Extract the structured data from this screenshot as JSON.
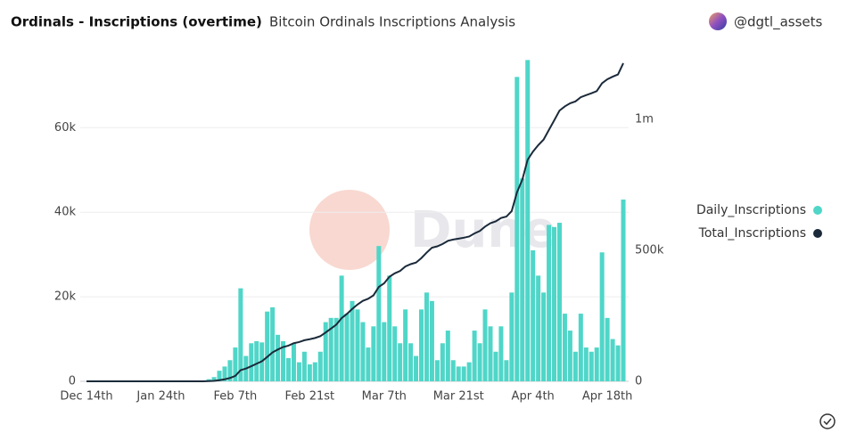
{
  "chart_data": {
    "type": "bar_line",
    "title": "Ordinals - Inscriptions (overtime)",
    "subtitle": "Bitcoin Ordinals Inscriptions Analysis",
    "author": "@dgtl_assets",
    "watermark": "Dune",
    "categories": [
      "Dec 14th",
      null,
      null,
      null,
      null,
      null,
      null,
      null,
      null,
      null,
      null,
      null,
      null,
      null,
      "Jan 24th",
      null,
      null,
      null,
      null,
      null,
      null,
      null,
      null,
      null,
      null,
      null,
      null,
      null,
      "Feb 7th",
      null,
      null,
      null,
      null,
      null,
      null,
      null,
      null,
      null,
      null,
      null,
      null,
      null,
      "Feb 21st",
      null,
      null,
      null,
      null,
      null,
      null,
      null,
      null,
      null,
      null,
      null,
      null,
      null,
      "Mar 7th",
      null,
      null,
      null,
      null,
      null,
      null,
      null,
      null,
      null,
      null,
      null,
      null,
      null,
      "Mar 21st",
      null,
      null,
      null,
      null,
      null,
      null,
      null,
      null,
      null,
      null,
      null,
      null,
      null,
      "Apr 4th",
      null,
      null,
      null,
      null,
      null,
      null,
      null,
      null,
      null,
      null,
      null,
      null,
      null,
      "Apr 18th",
      null,
      null,
      null
    ],
    "series": [
      {
        "name": "Daily_Inscriptions",
        "color": "#4fd6c8",
        "kind": "bar",
        "values": [
          0,
          0,
          0,
          0,
          0,
          0,
          0,
          0,
          0,
          0,
          0,
          0,
          0,
          0,
          0,
          0,
          0,
          0,
          0,
          0,
          0,
          0,
          200,
          500,
          1000,
          2500,
          3500,
          5000,
          8000,
          22000,
          6000,
          9000,
          9500,
          9200,
          16500,
          17500,
          11000,
          9500,
          5500,
          9000,
          4500,
          7000,
          4000,
          4500,
          7000,
          14000,
          15000,
          15000,
          25000,
          16000,
          19000,
          17000,
          14000,
          8000,
          13000,
          32000,
          14000,
          25000,
          13000,
          9000,
          17000,
          9000,
          6000,
          17000,
          21000,
          19000,
          5000,
          9000,
          12000,
          5000,
          3500,
          3500,
          4500,
          12000,
          9000,
          17000,
          13000,
          7000,
          13000,
          5000,
          21000,
          72000,
          48000,
          76000,
          31000,
          25000,
          21000,
          37000,
          36500,
          37500,
          16000,
          12000,
          7000,
          16000,
          8000,
          7000,
          8000,
          30500,
          15000,
          10000,
          8500,
          43000
        ]
      },
      {
        "name": "Total_Inscriptions",
        "color": "#1b2a3a",
        "kind": "line",
        "axis": "y2",
        "values": [
          0,
          0,
          0,
          0,
          0,
          0,
          0,
          0,
          0,
          0,
          0,
          0,
          0,
          0,
          0,
          0,
          0,
          0,
          0,
          0,
          0,
          0,
          200,
          700,
          1700,
          4200,
          7700,
          12700,
          20700,
          42700,
          48700,
          57700,
          67200,
          76400,
          92900,
          110400,
          121400,
          130900,
          136400,
          145400,
          149900,
          156900,
          160900,
          165400,
          172400,
          186400,
          201400,
          216400,
          241400,
          257400,
          276400,
          293400,
          307400,
          315400,
          328400,
          360400,
          374400,
          399400,
          412400,
          421400,
          438400,
          447400,
          453400,
          470400,
          491400,
          510400,
          515400,
          524400,
          536400,
          541400,
          544900,
          548400,
          552900,
          564900,
          573900,
          590900,
          603900,
          610900,
          623900,
          628900,
          649900,
          721900,
          769900,
          845900,
          876900,
          901900,
          922900,
          959900,
          996400,
          1033900,
          1049900,
          1061900,
          1068900,
          1084900,
          1092900,
          1099900,
          1107900,
          1138400,
          1153400,
          1163400,
          1171900,
          1214900
        ]
      }
    ],
    "ylim": [
      0,
      76500
    ],
    "yticks": [
      0,
      {
        "value": 20000,
        "label": "20k"
      },
      {
        "value": 40000,
        "label": "40k"
      },
      {
        "value": 60000,
        "label": "60k"
      }
    ],
    "y2lim": [
      0,
      1235000
    ],
    "y2ticks": [
      0,
      {
        "value": 500000,
        "label": "500k"
      },
      {
        "value": 1000000,
        "label": "1m"
      }
    ],
    "grid": true,
    "legend": "right"
  }
}
